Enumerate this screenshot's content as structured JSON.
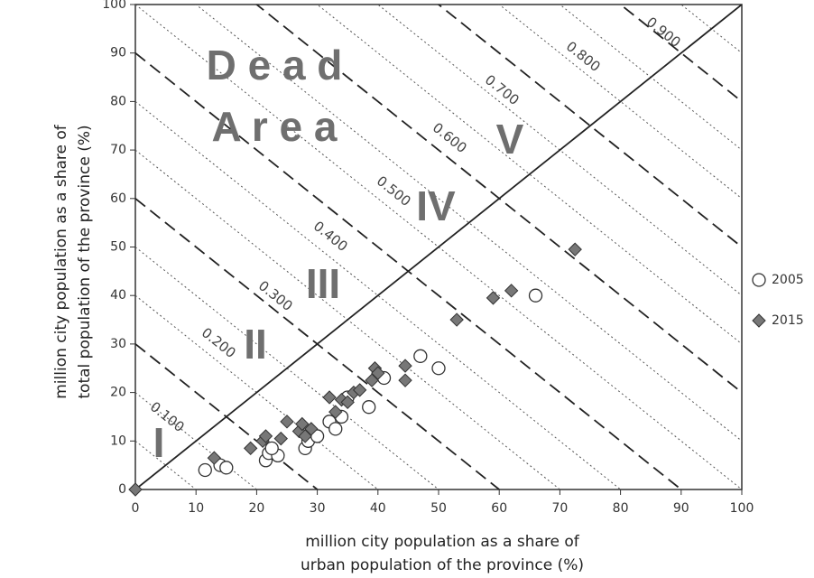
{
  "chart_data": {
    "type": "scatter",
    "x_label": [
      "million city population as a share of",
      "urban population of the province (%)"
    ],
    "y_label": [
      "million city population as a share of",
      "total population of the province (%)"
    ],
    "xlim": [
      0,
      100
    ],
    "ylim": [
      0,
      100
    ],
    "xticks": [
      0,
      10,
      20,
      30,
      40,
      50,
      60,
      70,
      80,
      90,
      100
    ],
    "yticks": [
      0,
      10,
      20,
      30,
      40,
      50,
      60,
      70,
      80,
      90,
      100
    ],
    "iso_labels": [
      "0.100",
      "0.200",
      "0.300",
      "0.400",
      "0.500",
      "0.600",
      "0.700",
      "0.800",
      "0.900"
    ],
    "regions": [
      "I",
      "II",
      "III",
      "IV",
      "V"
    ],
    "dead_area": [
      "D e a d",
      "A r e a"
    ],
    "series": [
      {
        "name": "2005",
        "color": "#ffffff",
        "marker": "circle",
        "x": [
          11.5,
          14,
          15,
          21.5,
          22,
          23.5,
          22.5,
          28,
          28.5,
          30,
          32,
          33,
          34,
          35,
          38.5,
          41,
          47,
          50,
          66
        ],
        "values": [
          4,
          5,
          4.5,
          6,
          7.5,
          7,
          8.5,
          8.5,
          10,
          11,
          14,
          12.5,
          15,
          19,
          17,
          23,
          27.5,
          25,
          40
        ]
      },
      {
        "name": "2015",
        "color": "#777777",
        "marker": "diamond",
        "x": [
          0,
          13,
          19,
          21,
          21.5,
          24,
          25,
          27,
          27.5,
          28,
          29,
          32,
          33,
          34,
          35,
          36,
          37,
          39,
          39.5,
          40,
          44.5,
          44.5,
          53,
          59,
          62,
          72.5
        ],
        "values": [
          0,
          6.5,
          8.5,
          10,
          11,
          10.5,
          14,
          12,
          13.5,
          11,
          12.5,
          19,
          16,
          18.5,
          18,
          20,
          20.5,
          22.5,
          25,
          24,
          22.5,
          25.5,
          35,
          39.5,
          41,
          49.5
        ]
      }
    ]
  }
}
